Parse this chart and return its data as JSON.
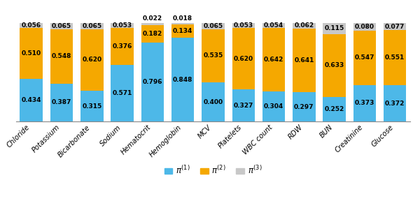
{
  "categories": [
    "Chloride",
    "Potassium",
    "Bicarbonate",
    "Sodium",
    "Hematocrit",
    "Hemoglobin",
    "MCV",
    "Platelets",
    "WBC count",
    "RDW",
    "BUN",
    "Creatinine",
    "Glucose"
  ],
  "pi1": [
    0.434,
    0.387,
    0.315,
    0.571,
    0.796,
    0.848,
    0.4,
    0.327,
    0.304,
    0.297,
    0.252,
    0.373,
    0.372
  ],
  "pi2": [
    0.51,
    0.548,
    0.62,
    0.376,
    0.182,
    0.134,
    0.535,
    0.62,
    0.642,
    0.641,
    0.633,
    0.547,
    0.551
  ],
  "pi3": [
    0.056,
    0.065,
    0.065,
    0.053,
    0.022,
    0.018,
    0.065,
    0.053,
    0.054,
    0.062,
    0.115,
    0.08,
    0.077
  ],
  "color1": "#4DB8E8",
  "color2": "#F5A800",
  "color3": "#C8C8C8",
  "value_fontsize": 6.5,
  "legend_fontsize": 8.5,
  "figsize": [
    5.9,
    2.88
  ],
  "dpi": 100
}
